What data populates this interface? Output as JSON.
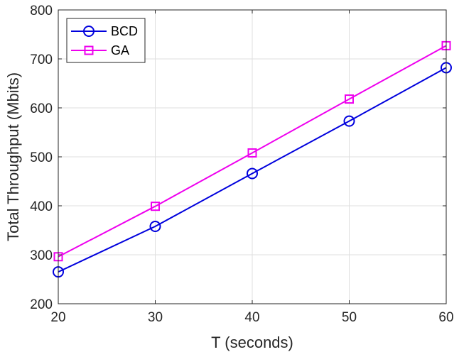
{
  "chart_data": {
    "type": "line",
    "xlabel": "T (seconds)",
    "ylabel": "Total Throughput (Mbits)",
    "x": [
      20,
      30,
      40,
      50,
      60
    ],
    "xlim": [
      20,
      60
    ],
    "ylim": [
      200,
      800
    ],
    "xticks": [
      20,
      30,
      40,
      50,
      60
    ],
    "yticks": [
      200,
      300,
      400,
      500,
      600,
      700,
      800
    ],
    "grid": true,
    "legend_position": "top-left",
    "series": [
      {
        "name": "BCD",
        "values": [
          265,
          358,
          466,
          573,
          682
        ],
        "color": "#0000dd",
        "marker": "circle"
      },
      {
        "name": "GA",
        "values": [
          296,
          399,
          508,
          618,
          727
        ],
        "color": "#ee00ee",
        "marker": "square"
      }
    ]
  }
}
